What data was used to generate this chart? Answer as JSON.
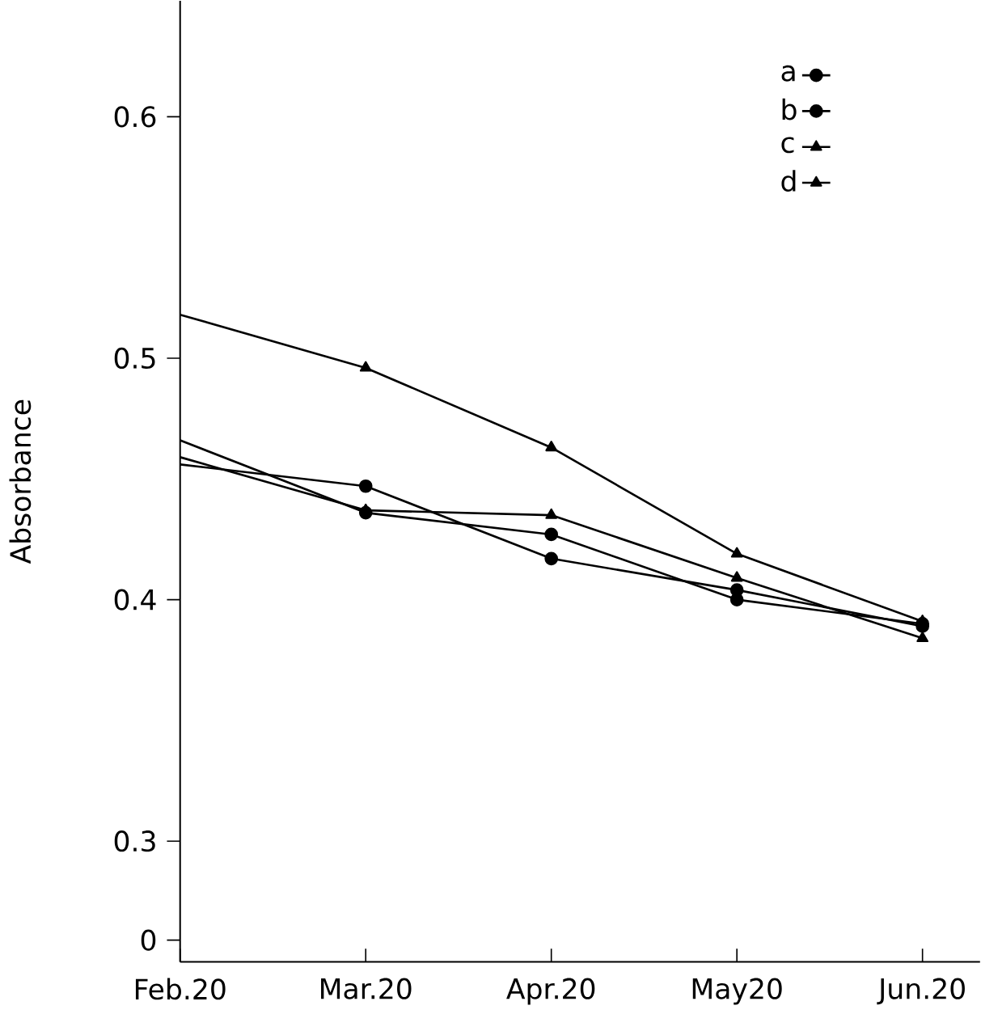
{
  "chart_data": {
    "type": "line",
    "ylabel": "Absorbance",
    "categories": [
      "Feb.20",
      "Mar.20",
      "Apr.20",
      "May20",
      "Jun.20"
    ],
    "series": [
      {
        "name": "a",
        "color": "#000000",
        "marker": "circle",
        "values": [
          0.456,
          0.447,
          0.417,
          0.404,
          0.389
        ]
      },
      {
        "name": "b",
        "color": "#000000",
        "marker": "circle",
        "values": [
          0.466,
          0.436,
          0.427,
          0.4,
          0.39
        ]
      },
      {
        "name": "c",
        "color": "#000000",
        "marker": "triangle",
        "values": [
          0.459,
          0.437,
          0.435,
          0.409,
          0.384
        ]
      },
      {
        "name": "d",
        "color": "#000000",
        "marker": "triangle",
        "values": [
          0.518,
          0.496,
          0.463,
          0.419,
          0.391
        ]
      }
    ],
    "ylim": [
      0.25,
      0.648
    ],
    "yticks": [
      {
        "value": 0.259,
        "label": "0"
      },
      0.3,
      0.4,
      0.5,
      0.6
    ],
    "grid": false,
    "legend": "top right",
    "line_style": "solid"
  }
}
